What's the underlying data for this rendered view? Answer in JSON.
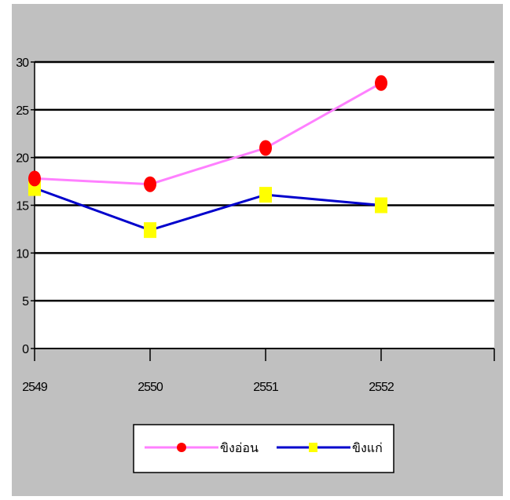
{
  "chart_data": {
    "type": "line",
    "categories": [
      "2549",
      "2550",
      "2551",
      "2552"
    ],
    "series": [
      {
        "name": "ขิงอ่อน",
        "values": [
          17.8,
          17.2,
          21.0,
          27.8
        ],
        "line_color": "#ff80ff",
        "marker": "circle",
        "marker_color": "#ff0000"
      },
      {
        "name": "ขิงแก่",
        "values": [
          16.8,
          12.4,
          16.1,
          15.0
        ],
        "line_color": "#0000cc",
        "marker": "square",
        "marker_color": "#ffff00"
      }
    ],
    "ylim": [
      0,
      30
    ],
    "yticks": [
      "0",
      "5",
      "10",
      "15",
      "20",
      "25",
      "30"
    ],
    "grid": true,
    "legend_position": "bottom",
    "plot_background": "#ffffff",
    "chart_background": "#c0c0c0"
  }
}
